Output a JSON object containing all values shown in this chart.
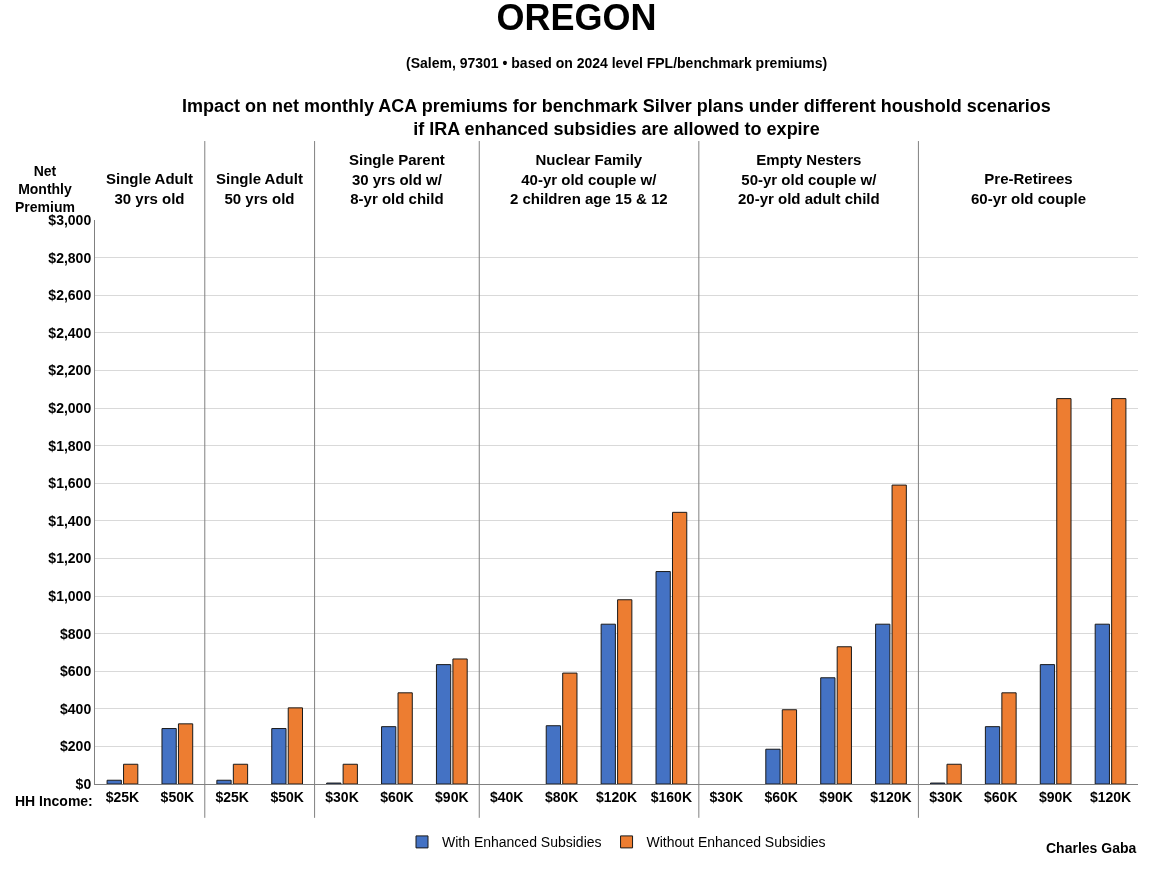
{
  "chart_data": {
    "type": "bar",
    "title": "OREGON",
    "subtitle": "(Salem, 97301 • based on 2024 level FPL/benchmark premiums)",
    "ylabel": "Net Monthly Premium",
    "xlabel": "HH Income:",
    "categories": [
      "$25K",
      "$50K",
      "$25K",
      "$50K",
      "$30K",
      "$60K",
      "$90K",
      "$40K",
      "$80K",
      "$120K",
      "$160K",
      "$30K",
      "$60K",
      "$90K",
      "$120K",
      "$30K",
      "$60K",
      "$90K",
      "$120K"
    ],
    "series": [
      {
        "name": "With Enhanced Subsidies",
        "color": "#4472c4",
        "values": [
          20,
          295,
          20,
          295,
          5,
          305,
          635,
          0,
          310,
          850,
          1130,
          0,
          185,
          565,
          850,
          5,
          305,
          635,
          850
        ]
      },
      {
        "name": "Without Enhanced Subsidies",
        "color": "#ed7d31",
        "values": [
          105,
          320,
          105,
          405,
          105,
          485,
          665,
          0,
          590,
          980,
          1445,
          0,
          395,
          730,
          1590,
          105,
          485,
          2050,
          2050
        ]
      }
    ],
    "ylim": [
      0,
      3000
    ],
    "yticks": [
      {
        "value": 0,
        "label": "$0"
      },
      {
        "value": 200,
        "label": "$200"
      },
      {
        "value": 400,
        "label": "$400"
      },
      {
        "value": 600,
        "label": "$600"
      },
      {
        "value": 800,
        "label": "$800"
      },
      {
        "value": 1000,
        "label": "$1,000"
      },
      {
        "value": 1200,
        "label": "$1,200"
      },
      {
        "value": 1400,
        "label": "$1,400"
      },
      {
        "value": 1600,
        "label": "$1,600"
      },
      {
        "value": 1800,
        "label": "$1,800"
      },
      {
        "value": 2000,
        "label": "$2,000"
      },
      {
        "value": 2200,
        "label": "$2,200"
      },
      {
        "value": 2400,
        "label": "$2,400"
      },
      {
        "value": 2600,
        "label": "$2,600"
      },
      {
        "value": 2800,
        "label": "$2,800"
      },
      {
        "value": 3000,
        "label": "$3,000"
      }
    ],
    "annotations": [
      "Impact on net monthly ACA premiums for benchmark Silver plans under different houshold scenarios\nif IRA enhanced subsidies are allowed to expire",
      "Single Adult\n30 yrs old",
      "Single Adult\n50 yrs old",
      "Single Parent\n30 yrs old w/\n8-yr old child",
      "Nuclear Family\n40-yr old couple w/\n2 children age 15 & 12",
      "Empty Nesters\n50-yr old couple w/\n20-yr old adult child",
      "Pre-Retirees\n60-yr old couple",
      "Charles Gaba"
    ],
    "grid": "y",
    "legend": "bottom"
  }
}
